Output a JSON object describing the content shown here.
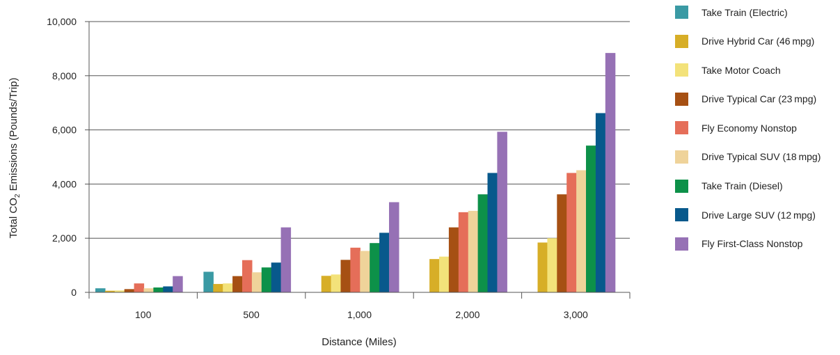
{
  "chart_data": {
    "type": "bar",
    "title": "",
    "xlabel": "Distance (Miles)",
    "ylabel_parts": [
      "Total CO",
      "2",
      " Emissions (Pounds/Trip)"
    ],
    "ylim": [
      0,
      10000
    ],
    "yticks": [
      0,
      2000,
      4000,
      6000,
      8000,
      10000
    ],
    "ytick_labels": [
      "0",
      "2,000",
      "4,000",
      "6,000",
      "8,000",
      "10,000"
    ],
    "grid": true,
    "legend_position": "right",
    "categories": [
      "100",
      "500",
      "1,000",
      "2,000",
      "3,000"
    ],
    "series": [
      {
        "name": "Take Train (Electric)",
        "color": "#3a9aa4",
        "values": [
          150,
          760,
          0,
          0,
          0
        ]
      },
      {
        "name": "Drive Hybrid Car (46 mpg)",
        "color": "#d7ae27",
        "values": [
          60,
          310,
          610,
          1230,
          1840
        ]
      },
      {
        "name": "Take Motor Coach",
        "color": "#f3e27a",
        "values": [
          70,
          330,
          660,
          1320,
          2000
        ]
      },
      {
        "name": "Drive Typical Car (23 mpg)",
        "color": "#a65013",
        "values": [
          120,
          600,
          1200,
          2400,
          3620
        ]
      },
      {
        "name": "Fly Economy Nonstop",
        "color": "#e56e59",
        "values": [
          330,
          1190,
          1650,
          2960,
          4410
        ]
      },
      {
        "name": "Drive Typical SUV (18 mpg)",
        "color": "#efd39a",
        "values": [
          150,
          740,
          1530,
          3010,
          4510
        ]
      },
      {
        "name": "Take Train (Diesel)",
        "color": "#0d9149",
        "values": [
          180,
          920,
          1820,
          3620,
          5420
        ]
      },
      {
        "name": "Drive Large SUV (12 mpg)",
        "color": "#08598c",
        "values": [
          220,
          1100,
          2200,
          4410,
          6620
        ]
      },
      {
        "name": "Fly First-Class Nonstop",
        "color": "#9671b5",
        "values": [
          600,
          2400,
          3330,
          5930,
          8840
        ]
      }
    ]
  }
}
